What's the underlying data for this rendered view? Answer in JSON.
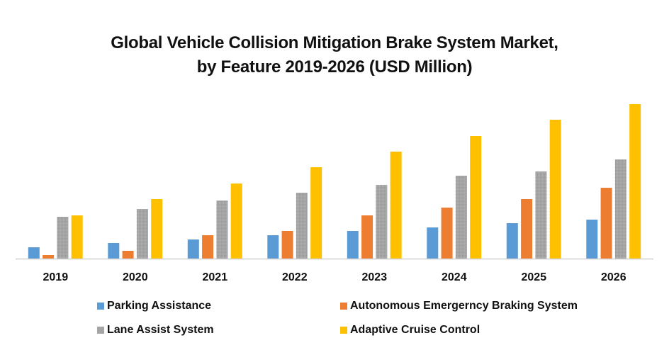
{
  "chart_data": {
    "type": "bar",
    "title": "Global Vehicle Collision Mitigation Brake System Market,",
    "subtitle": "by Feature 2019-2026 (USD Million)",
    "xlabel": "",
    "ylabel": "",
    "categories": [
      "2019",
      "2020",
      "2021",
      "2022",
      "2023",
      "2024",
      "2025",
      "2026"
    ],
    "ylim": [
      0,
      230
    ],
    "grid": false,
    "legend_position": "bottom",
    "series": [
      {
        "name": "Parking Assistance",
        "color": "#5B9BD5",
        "values": [
          16,
          22,
          27,
          33,
          39,
          44,
          50,
          55
        ]
      },
      {
        "name": "Autonomous Emergerncy Braking System",
        "color": "#ED7D31",
        "values": [
          5,
          11,
          33,
          39,
          61,
          72,
          84,
          100
        ]
      },
      {
        "name": "Lane Assist System",
        "color": "#A5A5A5",
        "values": [
          59,
          70,
          82,
          93,
          104,
          117,
          123,
          140
        ]
      },
      {
        "name": "Adaptive Cruise Control",
        "color": "#FFC000",
        "values": [
          61,
          84,
          106,
          129,
          151,
          173,
          196,
          218
        ]
      }
    ]
  }
}
